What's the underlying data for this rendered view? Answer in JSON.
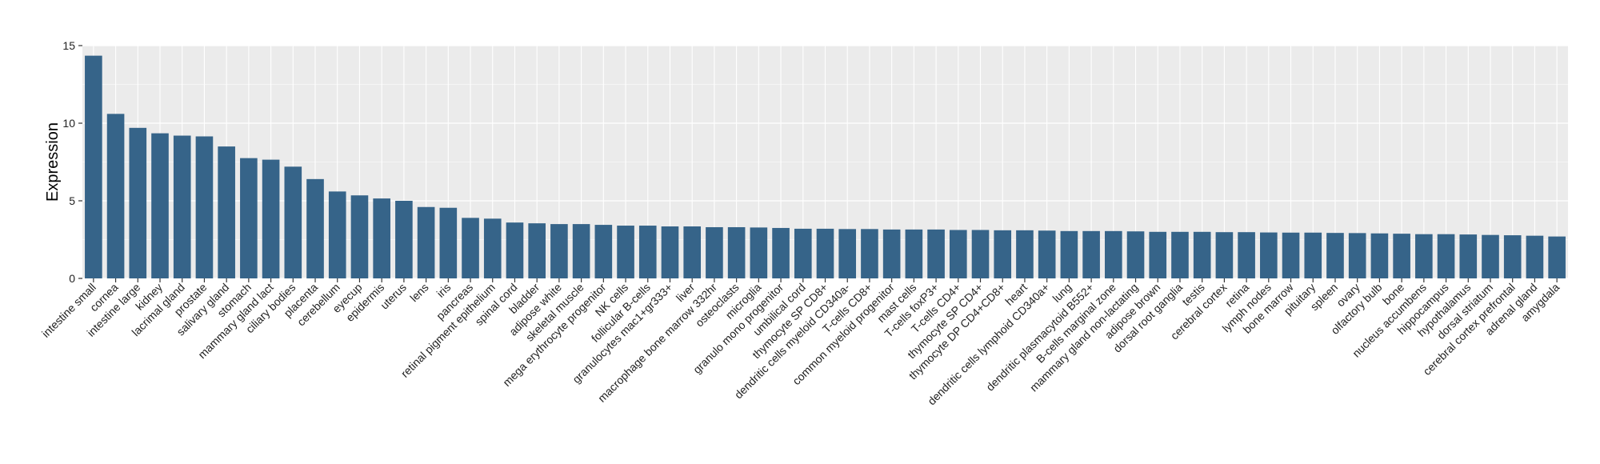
{
  "chart_data": {
    "type": "bar",
    "title": "",
    "xlabel": "",
    "ylabel": "Expression",
    "ylim": [
      0,
      15
    ],
    "yticks": [
      0,
      5,
      10,
      15
    ],
    "grid": true,
    "bar_color": "#366489",
    "panel_background": "#EBEBEB",
    "categories": [
      "intestine small",
      "cornea",
      "intestine large",
      "kidney",
      "lacrimal gland",
      "prostate",
      "salivary gland",
      "stomach",
      "mammary gland lact",
      "ciliary bodies",
      "placenta",
      "cerebellum",
      "eyecup",
      "epidermis",
      "uterus",
      "lens",
      "iris",
      "pancreas",
      "retinal pigment epithelium",
      "spinal cord",
      "bladder",
      "adipose white",
      "skeletal muscle",
      "mega erythrocyte progenitor",
      "NK cells",
      "follicular B-cells",
      "granulocytes mac1+gr333+",
      "liver",
      "macrophage bone marrow 332hr",
      "osteoclasts",
      "microglia",
      "granulo mono progenitor",
      "umbilical cord",
      "thymocyte SP CD8+",
      "dendritic cells myeloid CD340a-",
      "T-cells CD8+",
      "common myeloid progenitor",
      "mast cells",
      "T-cells foxP3+",
      "T-cells CD4+",
      "thymocyte SP CD4+",
      "thymocyte DP CD4+CD8+",
      "heart",
      "dendritic cells lymphoid CD340a+",
      "lung",
      "dendritic plasmacytoid B552+",
      "B-cells marginal zone",
      "mammary gland non-lactating",
      "adipose brown",
      "dorsal root ganglia",
      "testis",
      "cerebral cortex",
      "retina",
      "lymph nodes",
      "bone marrow",
      "pituitary",
      "spleen",
      "ovary",
      "olfactory bulb",
      "bone",
      "nucleus accumbens",
      "hippocampus",
      "hypothalamus",
      "dorsal striatum",
      "cerebral cortex prefrontal",
      "adrenal gland",
      "amygdala"
    ],
    "values": [
      14.35,
      10.6,
      9.7,
      9.35,
      9.2,
      9.15,
      8.5,
      7.75,
      7.65,
      7.2,
      6.4,
      5.6,
      5.35,
      5.15,
      5.0,
      4.6,
      4.55,
      3.9,
      3.85,
      3.6,
      3.55,
      3.5,
      3.5,
      3.45,
      3.4,
      3.4,
      3.35,
      3.35,
      3.3,
      3.3,
      3.28,
      3.25,
      3.2,
      3.2,
      3.18,
      3.18,
      3.15,
      3.15,
      3.15,
      3.12,
      3.12,
      3.1,
      3.1,
      3.08,
      3.05,
      3.05,
      3.05,
      3.03,
      3.0,
      3.0,
      3.0,
      2.98,
      2.98,
      2.96,
      2.95,
      2.95,
      2.93,
      2.92,
      2.9,
      2.88,
      2.85,
      2.85,
      2.83,
      2.8,
      2.78,
      2.75,
      2.7
    ]
  }
}
